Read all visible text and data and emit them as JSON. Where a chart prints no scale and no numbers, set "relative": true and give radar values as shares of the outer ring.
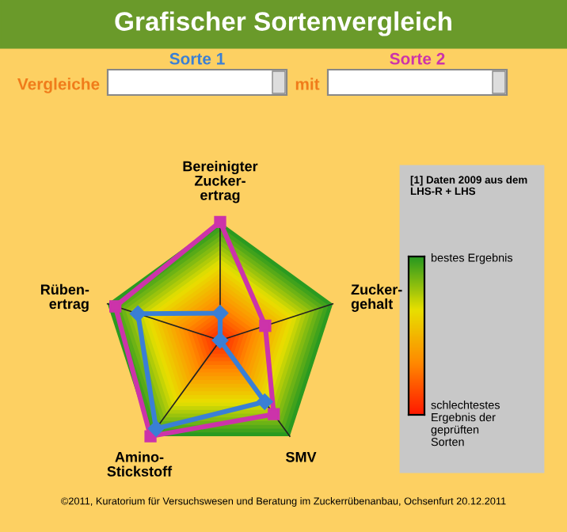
{
  "chart_data": {
    "type": "radar",
    "title": "Grafischer Sortenvergleich",
    "relative": true,
    "categories": [
      "Bereinigter\nZucker-\nertrag",
      "Zucker-\ngehalt",
      "SMV",
      "Amino-\nStickstoff",
      "Rüben-\nertrag"
    ],
    "series": [
      {
        "name": "Sorte 1",
        "color": "#3a7fd5",
        "marker": "diamond",
        "values": [
          0.23,
          0.0,
          0.64,
          0.92,
          0.73
        ]
      },
      {
        "name": "Sorte 2",
        "color": "#cc33aa",
        "marker": "square",
        "values": [
          1.0,
          0.4,
          0.77,
          1.0,
          0.93
        ]
      }
    ],
    "annotations": [
      "Vergleiche",
      "mit",
      "[1] Daten 2009 aus dem\nLHS-R + LHS",
      "bestes Ergebnis",
      "schlechtestes\nErgebnis der\ngeprüften\nSorten",
      "©2011, Kuratorium für Versuchswesen und Beratung im Zuckerrübenanbau, Ochsenfurt 20.12.2011"
    ],
    "legend": "top",
    "grid": true
  }
}
